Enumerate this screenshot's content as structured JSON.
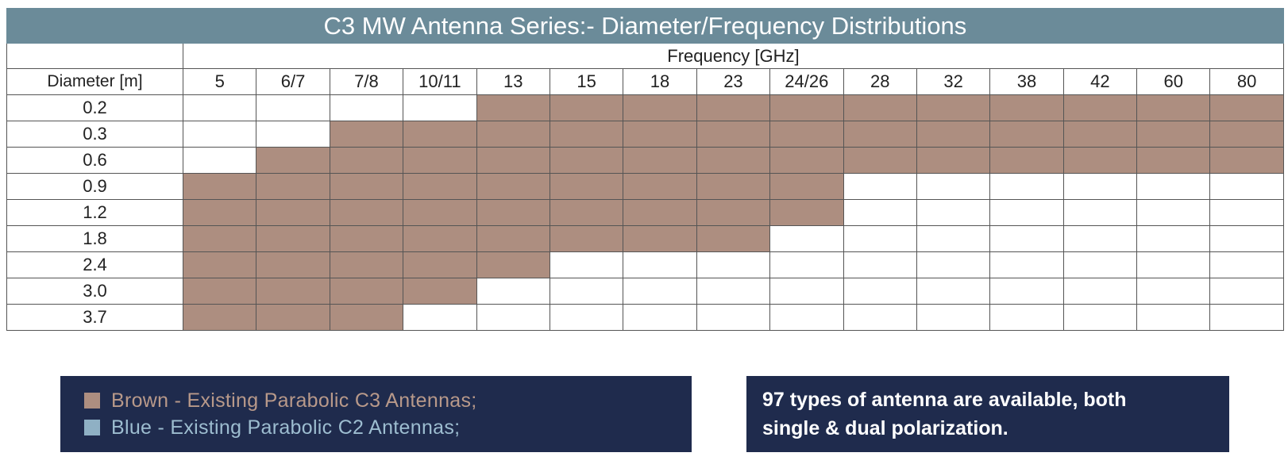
{
  "chart_data": {
    "type": "table",
    "title": "C3 MW Antenna Series:- Diameter/Frequency Distributions",
    "column_group_label": "Frequency [GHz]",
    "row_header_label": "Diameter [m]",
    "frequencies": [
      "5",
      "6/7",
      "7/8",
      "10/11",
      "13",
      "15",
      "18",
      "23",
      "24/26",
      "28",
      "32",
      "38",
      "42",
      "60",
      "80"
    ],
    "diameters": [
      "0.2",
      "0.3",
      "0.6",
      "0.9",
      "1.2",
      "1.8",
      "2.4",
      "3.0",
      "3.7"
    ],
    "availability": [
      [
        0,
        0,
        0,
        0,
        1,
        1,
        1,
        1,
        1,
        1,
        1,
        1,
        1,
        1,
        1
      ],
      [
        0,
        0,
        1,
        1,
        1,
        1,
        1,
        1,
        1,
        1,
        1,
        1,
        1,
        1,
        1
      ],
      [
        0,
        1,
        1,
        1,
        1,
        1,
        1,
        1,
        1,
        1,
        1,
        1,
        1,
        1,
        1
      ],
      [
        1,
        1,
        1,
        1,
        1,
        1,
        1,
        1,
        1,
        0,
        0,
        0,
        0,
        0,
        0
      ],
      [
        1,
        1,
        1,
        1,
        1,
        1,
        1,
        1,
        1,
        0,
        0,
        0,
        0,
        0,
        0
      ],
      [
        1,
        1,
        1,
        1,
        1,
        1,
        1,
        1,
        0,
        0,
        0,
        0,
        0,
        0,
        0
      ],
      [
        1,
        1,
        1,
        1,
        1,
        0,
        0,
        0,
        0,
        0,
        0,
        0,
        0,
        0,
        0
      ],
      [
        1,
        1,
        1,
        1,
        0,
        0,
        0,
        0,
        0,
        0,
        0,
        0,
        0,
        0,
        0
      ],
      [
        1,
        1,
        1,
        0,
        0,
        0,
        0,
        0,
        0,
        0,
        0,
        0,
        0,
        0,
        0
      ]
    ],
    "grid": true
  },
  "legend": {
    "items": [
      {
        "label": "Brown - Existing Parabolic C3 Antennas;",
        "color": "#ad8e80",
        "text_color": "#b8998a"
      },
      {
        "label": "Blue - Existing Parabolic C2 Antennas;",
        "color": "#8fb0c4",
        "text_color": "#9dbdd0"
      }
    ]
  },
  "note": {
    "line1": "97 types of antenna are available, both",
    "line2": "single & dual polarization."
  },
  "colors": {
    "title_bar": "#6b8b99",
    "filled": "#ad8e80",
    "panel": "#1f2b4d",
    "grid_line": "#555555"
  }
}
